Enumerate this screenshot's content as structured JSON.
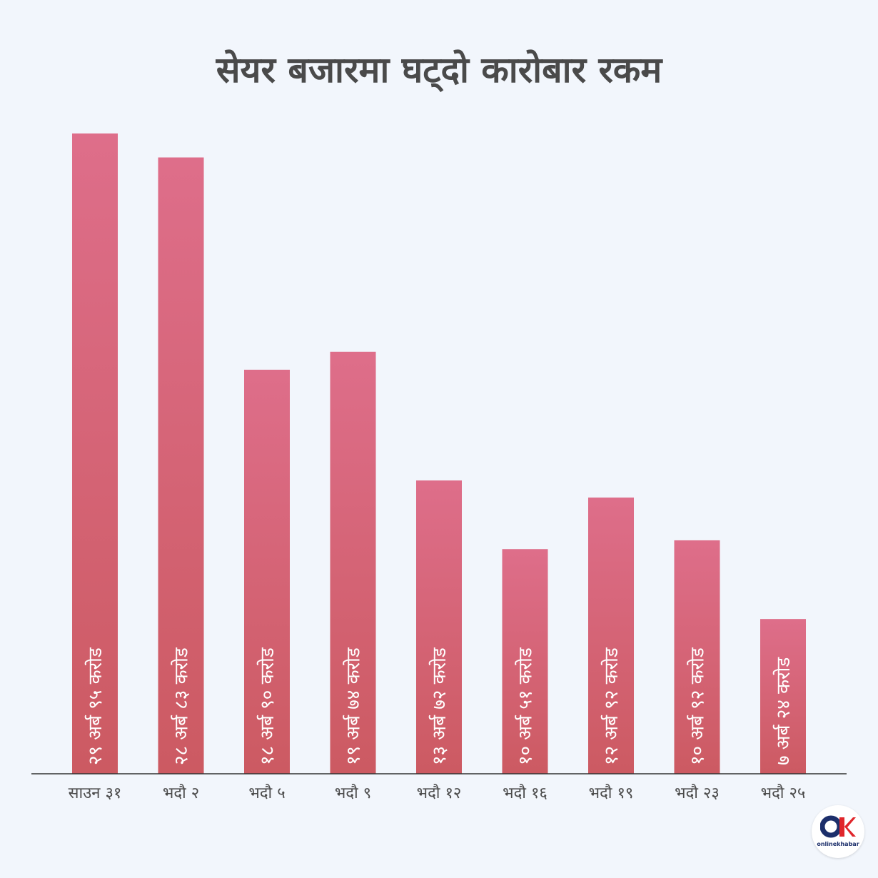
{
  "chart_data": {
    "type": "bar",
    "title": "सेयर बजारमा घट्दो कारोबार रकम",
    "categories": [
      "साउन ३१",
      "भदौ २",
      "भदौ ५",
      "भदौ ९",
      "भदौ १२",
      "भदौ १६",
      "भदौ १९",
      "भदौ २३",
      "भदौ २५"
    ],
    "values": [
      29.95,
      28.83,
      18.9,
      19.74,
      13.72,
      10.51,
      12.92,
      10.92,
      7.24
    ],
    "value_labels": [
      "२९ अर्ब ९५ करोड",
      "२८ अर्ब ८३ करोड",
      "१८ अर्ब ९० करोड",
      "१९ अर्ब ७४ करोड",
      "१३ अर्ब ७२ करोड",
      "१० अर्ब ५१ करोड",
      "१२ अर्ब ९२ करोड",
      "१० अर्ब ९२ करोड",
      "७ अर्ब २४ करोड"
    ],
    "ylim": [
      0,
      30
    ],
    "grid": false,
    "colors": {
      "bar_top": "#de6e8a",
      "bar_bottom": "#cc5a62",
      "axis": "#333333",
      "text": "#4a4a4a",
      "background": "#f2f6fc"
    }
  },
  "logo": {
    "mark": "OK",
    "text": "onlinekhabar"
  }
}
